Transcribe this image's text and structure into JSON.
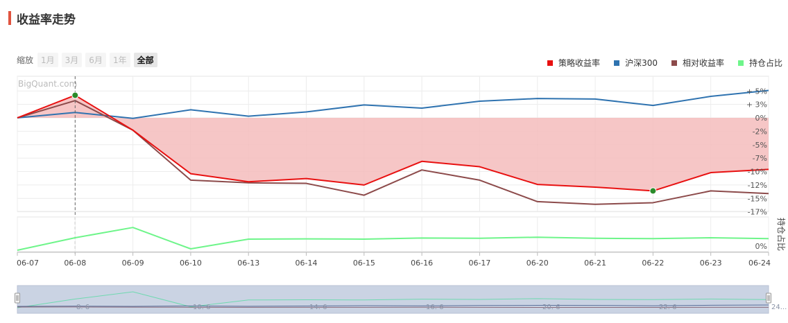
{
  "header": {
    "title": "收益率走势"
  },
  "zoom": {
    "label": "缩放",
    "buttons": [
      "1月",
      "3月",
      "6月",
      "1年",
      "全部"
    ],
    "active": "全部"
  },
  "watermark": "BigQuant.com",
  "legend": [
    {
      "name": "策略收益率",
      "color": "#e81010"
    },
    {
      "name": "沪深300",
      "color": "#2f73b0"
    },
    {
      "name": "相对收益率",
      "color": "#8c4a4a"
    },
    {
      "name": "持仓占比",
      "color": "#6ef58a"
    }
  ],
  "chart_data": [
    {
      "type": "line",
      "categories": [
        "06-07",
        "06-08",
        "06-09",
        "06-10",
        "06-13",
        "06-14",
        "06-15",
        "06-16",
        "06-17",
        "06-20",
        "06-21",
        "06-22",
        "06-23",
        "06-24"
      ],
      "y_tick_labels": [
        "+ 5%",
        "+ 3%",
        "0%",
        "-2%",
        "-5%",
        "-7%",
        "-10%",
        "-12%",
        "-15%",
        "-17%"
      ],
      "y_ticks": [
        5,
        2.5,
        0,
        -2.5,
        -5,
        -7.5,
        -10,
        -12.5,
        -15,
        -17.5
      ],
      "ylim": [
        -17.5,
        5
      ],
      "series": [
        {
          "name": "策略收益率",
          "color": "#e81010",
          "fill": "#f4bcbc",
          "values": [
            0,
            4.2,
            -2.3,
            -10.4,
            -11.9,
            -11.3,
            -12.5,
            -8.1,
            -9.1,
            -12.4,
            -12.9,
            -13.6,
            -10.2,
            -9.6
          ]
        },
        {
          "name": "沪深300",
          "color": "#2f73b0",
          "values": [
            0,
            1.0,
            -0.1,
            1.5,
            0.3,
            1.1,
            2.4,
            1.8,
            3.1,
            3.6,
            3.5,
            2.3,
            4.0,
            5.1
          ]
        },
        {
          "name": "相对收益率",
          "color": "#8c4a4a",
          "values": [
            0,
            3.2,
            -2.3,
            -11.6,
            -12.1,
            -12.2,
            -14.4,
            -9.7,
            -11.6,
            -15.6,
            -16.1,
            -15.8,
            -13.6,
            -14.1
          ]
        }
      ],
      "markers": [
        {
          "series": "策略收益率",
          "category": "06-08",
          "value": 4.2,
          "color": "#2a8a2a"
        },
        {
          "series": "策略收益率",
          "category": "06-22",
          "value": -13.6,
          "color": "#2a8a2a"
        }
      ],
      "crosshair_category": "06-08"
    },
    {
      "type": "line",
      "categories": [
        "06-07",
        "06-08",
        "06-09",
        "06-10",
        "06-13",
        "06-14",
        "06-15",
        "06-16",
        "06-17",
        "06-20",
        "06-21",
        "06-22",
        "06-23",
        "06-24"
      ],
      "ylabel": "持仓占比",
      "y_tick_labels": [
        "0%"
      ],
      "ylim": [
        0,
        1.1
      ],
      "series": [
        {
          "name": "持仓占比",
          "color": "#6ef58a",
          "values": [
            0.0,
            0.45,
            0.82,
            0.05,
            0.4,
            0.41,
            0.4,
            0.44,
            0.43,
            0.47,
            0.43,
            0.42,
            0.45,
            0.42
          ]
        }
      ]
    }
  ],
  "navigator": {
    "tick_labels": [
      "8. 6",
      "10. 6",
      "14. 6",
      "16. 6",
      "20. 6",
      "22. 6",
      "24..."
    ]
  }
}
